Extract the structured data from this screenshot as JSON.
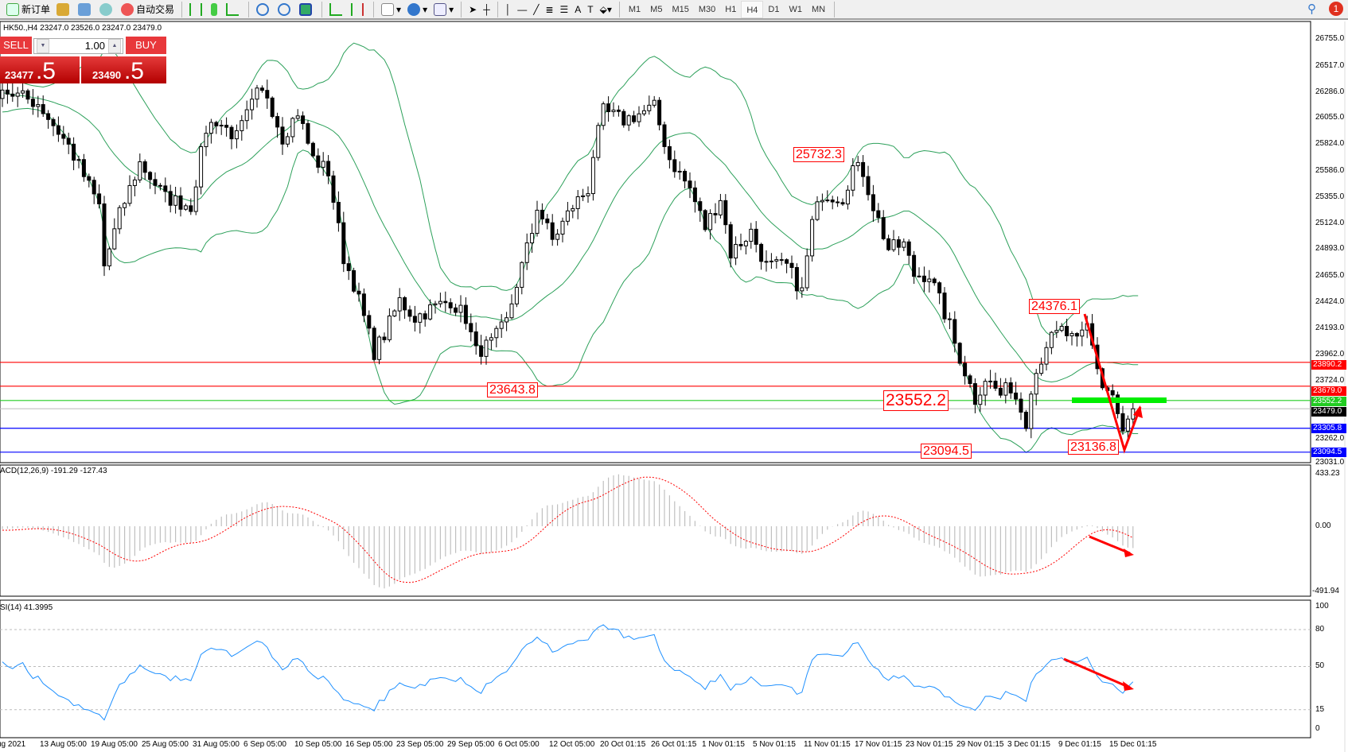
{
  "toolbar": {
    "new_order": "新订单",
    "auto_trading": "自动交易",
    "timeframes": [
      "M1",
      "M5",
      "M15",
      "M30",
      "H1",
      "H4",
      "D1",
      "W1",
      "MN"
    ],
    "active_timeframe": "H4",
    "text_tool": "A",
    "notification_count": "1",
    "icons": [
      "new-order-icon",
      "market-watch-icon",
      "navigator-icon",
      "signals-icon",
      "auto-trading-icon",
      "bar-chart-icon",
      "candlestick-icon",
      "line-chart-icon",
      "zoom-in-icon",
      "zoom-out-icon",
      "tile-windows-icon",
      "chart-shift-icon",
      "autoscroll-icon",
      "indicators-icon",
      "periods-icon",
      "templates-icon",
      "cursor-icon",
      "crosshair-icon",
      "vertical-line-icon",
      "horizontal-line-icon",
      "trendline-icon",
      "fibonacci-icon",
      "fibonacci-fan-icon",
      "text-icon",
      "text-label-icon",
      "arrows-icon",
      "search-icon",
      "chat-icon"
    ]
  },
  "chart": {
    "symbol_info": "HK50.,H4  23247.0 23526.0 23247.0 23479.0",
    "trade_panel": {
      "sell": "SELL",
      "buy": "BUY",
      "volume": "1.00",
      "bid_main": "23477",
      "bid_big": ".5",
      "ask_main": "23490",
      "ask_big": ".5"
    },
    "price_axis": [
      "26755.0",
      "26517.0",
      "26286.0",
      "26055.0",
      "25824.0",
      "25586.0",
      "25355.0",
      "25124.0",
      "24893.0",
      "24655.0",
      "24424.0",
      "24193.0",
      "23962.0",
      "23724.0",
      "23262.0",
      "23031.0"
    ],
    "levels": [
      {
        "price": "23890.2",
        "color": "#ff0000"
      },
      {
        "price": "23679.0",
        "color": "#ff0000"
      },
      {
        "price": "23552.2",
        "color": "#22cc22"
      },
      {
        "price": "23479.0",
        "color": "#000000"
      },
      {
        "price": "23305.8",
        "color": "#0000ff"
      },
      {
        "price": "23094.5",
        "color": "#0000ff"
      }
    ],
    "annotations": [
      "25732.3",
      "23643.8",
      "23552.2",
      "24376.1",
      "23136.8",
      "23094.5"
    ],
    "price_path": [
      [
        0,
        26302
      ],
      [
        7,
        26187
      ],
      [
        13,
        25807
      ],
      [
        19,
        25275
      ],
      [
        20,
        24742
      ],
      [
        23,
        25199
      ],
      [
        27,
        25655
      ],
      [
        32,
        25351
      ],
      [
        37,
        25275
      ],
      [
        40,
        25959
      ],
      [
        42,
        26035
      ],
      [
        46,
        25883
      ],
      [
        50,
        26263
      ],
      [
        52,
        26263
      ],
      [
        55,
        25883
      ],
      [
        58,
        26111
      ],
      [
        61,
        25693
      ],
      [
        64,
        25579
      ],
      [
        67,
        24818
      ],
      [
        69,
        24590
      ],
      [
        73,
        23982
      ],
      [
        75,
        24134
      ],
      [
        78,
        24438
      ],
      [
        81,
        24286
      ],
      [
        84,
        24362
      ],
      [
        88,
        24438
      ],
      [
        91,
        24286
      ],
      [
        93,
        23982
      ],
      [
        96,
        24058
      ],
      [
        99,
        24248
      ],
      [
        101,
        24590
      ],
      [
        104,
        25047
      ],
      [
        105,
        25275
      ],
      [
        108,
        24971
      ],
      [
        112,
        25275
      ],
      [
        115,
        25427
      ],
      [
        116,
        25731
      ],
      [
        118,
        26111
      ],
      [
        122,
        26035
      ],
      [
        128,
        26149
      ],
      [
        131,
        25693
      ],
      [
        135,
        25427
      ],
      [
        138,
        25085
      ],
      [
        141,
        25351
      ],
      [
        143,
        24856
      ],
      [
        147,
        25047
      ],
      [
        150,
        24742
      ],
      [
        154,
        24742
      ],
      [
        157,
        24514
      ],
      [
        159,
        25124
      ],
      [
        161,
        25389
      ],
      [
        165,
        25351
      ],
      [
        167,
        25617
      ],
      [
        169,
        25579
      ],
      [
        171,
        25275
      ],
      [
        174,
        24894
      ],
      [
        177,
        24933
      ],
      [
        179,
        24666
      ],
      [
        182,
        24666
      ],
      [
        186,
        24210
      ],
      [
        187,
        24058
      ],
      [
        191,
        23564
      ],
      [
        193,
        23754
      ],
      [
        196,
        23602
      ],
      [
        198,
        23678
      ],
      [
        201,
        23373
      ],
      [
        202,
        23678
      ],
      [
        205,
        24058
      ],
      [
        208,
        24172
      ],
      [
        211,
        24058
      ],
      [
        213,
        24210
      ],
      [
        216,
        23678
      ],
      [
        218,
        23602
      ],
      [
        220,
        23250
      ],
      [
        222,
        23479
      ]
    ],
    "colors": {
      "bollinger": "#2ca05a",
      "up_body": "#ffffff",
      "down_body": "#000000",
      "arrow": "#ff0000",
      "support_bar": "#00ee00"
    }
  },
  "macd": {
    "label": "ACD(12,26,9) -191.29 -127.43",
    "axis": [
      "433.23",
      "0.00",
      "-491.94"
    ],
    "colors": {
      "histogram": "#c0c0c0",
      "signal": "#ff0000"
    }
  },
  "rsi": {
    "label": "SI(14) 41.3995",
    "axis": [
      "100",
      "80",
      "50",
      "15",
      "0"
    ],
    "color": "#1e90ff"
  },
  "dates": [
    "ug 2021",
    "13 Aug 05:00",
    "19 Aug 05:00",
    "25 Aug 05:00",
    "31 Aug 05:00",
    "6 Sep 05:00",
    "10 Sep 05:00",
    "16 Sep 05:00",
    "23 Sep 05:00",
    "29 Sep 05:00",
    "6 Oct 05:00",
    "12 Oct 05:00",
    "20 Oct 01:15",
    "26 Oct 01:15",
    "1 Nov 01:15",
    "5 Nov 01:15",
    "11 Nov 01:15",
    "17 Nov 01:15",
    "23 Nov 01:15",
    "29 Nov 01:15",
    "3 Dec 01:15",
    "9 Dec 01:15",
    "15 Dec 01:15"
  ]
}
